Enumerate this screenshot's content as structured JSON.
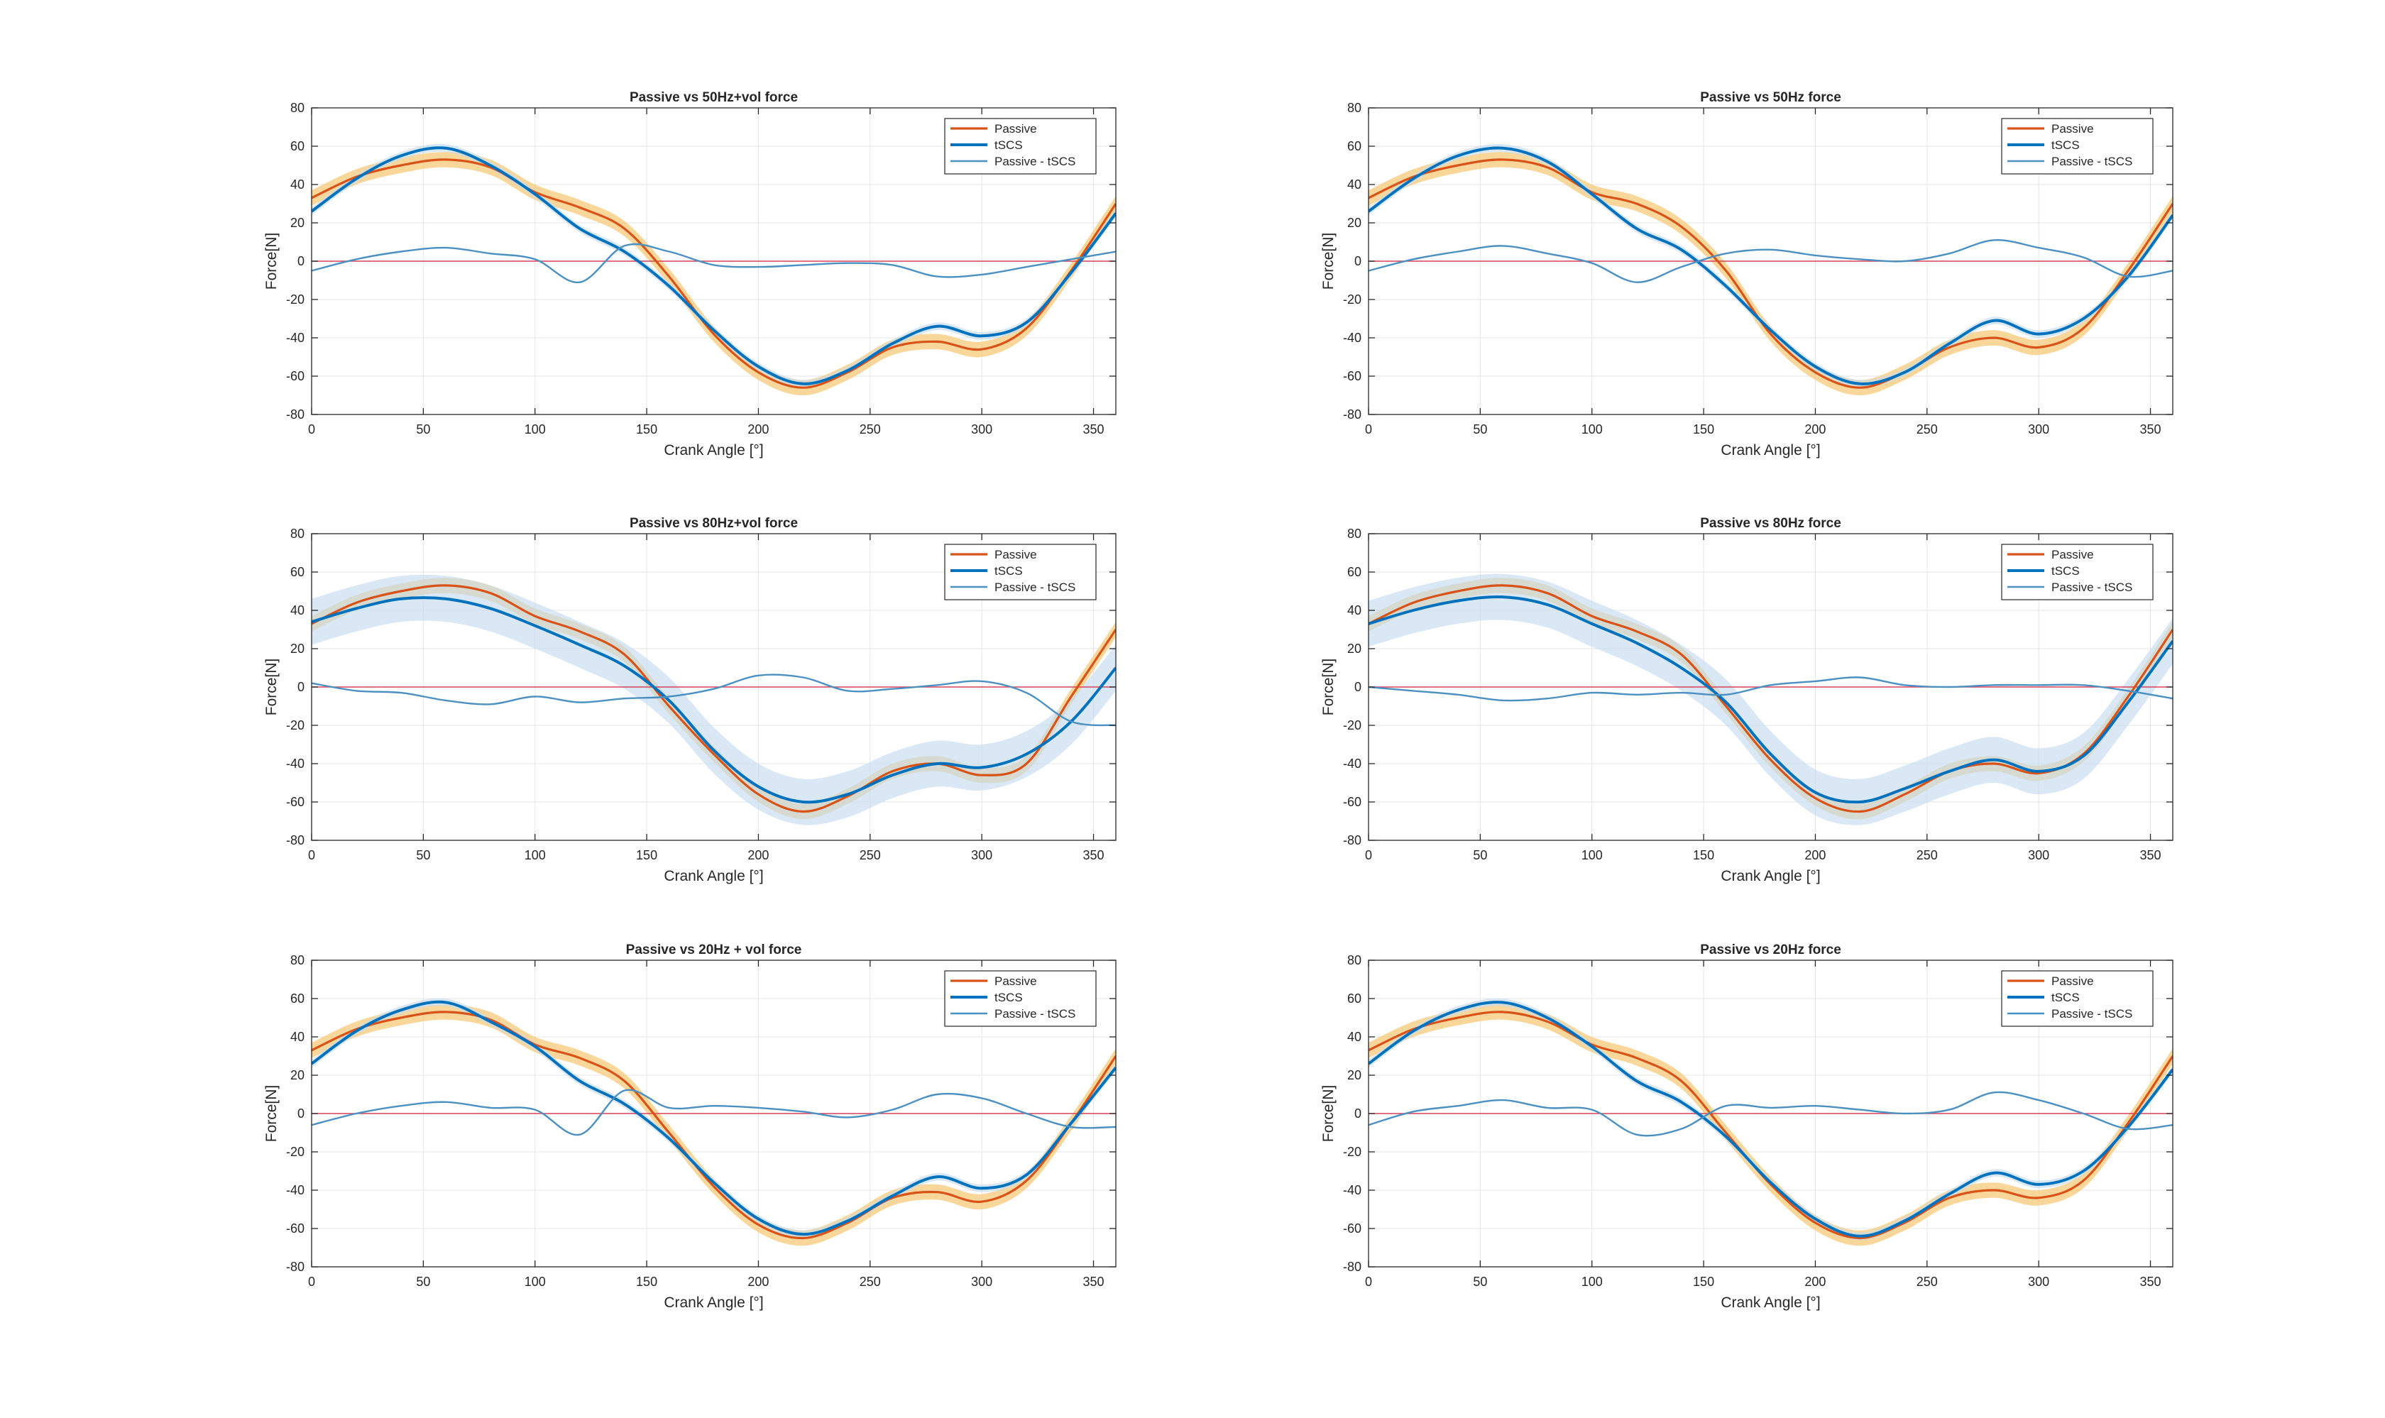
{
  "figure": {
    "background": "#ffffff"
  },
  "colors": {
    "passive": "#D95319",
    "passive_band": "#F7C979",
    "tscs": "#0072BD",
    "tscs_band": "#C5DCEE",
    "diff": "#4A90C2",
    "zero_line": "#D9405A",
    "grid": "#E6E6E6",
    "axes": "#262626"
  },
  "chart_data": [
    {
      "type": "line",
      "title": "Passive vs 50Hz+vol force",
      "xlabel": "Crank Angle [°]",
      "ylabel": "Force[N]",
      "xlim": [
        0,
        360
      ],
      "ylim": [
        -80,
        80
      ],
      "xticks": [
        0,
        50,
        100,
        150,
        200,
        250,
        300,
        350
      ],
      "yticks": [
        -80,
        -60,
        -40,
        -20,
        0,
        20,
        40,
        60,
        80
      ],
      "grid": true,
      "legend_position": "top-right",
      "x": [
        0,
        20,
        40,
        60,
        80,
        100,
        120,
        140,
        160,
        180,
        200,
        220,
        240,
        260,
        280,
        300,
        320,
        340,
        360
      ],
      "series": [
        {
          "name": "Passive",
          "values": [
            33,
            44,
            50,
            53,
            49,
            36,
            28,
            17,
            -8,
            -38,
            -58,
            -66,
            -58,
            -45,
            -42,
            -46,
            -35,
            -5,
            30
          ],
          "band": 4
        },
        {
          "name": "tSCS",
          "values": [
            26,
            43,
            55,
            59,
            50,
            35,
            17,
            5,
            -13,
            -36,
            -55,
            -64,
            -57,
            -43,
            -34,
            -39,
            -32,
            -6,
            25
          ],
          "band": 2
        },
        {
          "name": "Passive - tSCS",
          "values": [
            -5,
            1,
            5,
            7,
            4,
            1,
            -11,
            8,
            5,
            -2,
            -3,
            -2,
            -1,
            -2,
            -8,
            -7,
            -3,
            1,
            5
          ]
        }
      ]
    },
    {
      "type": "line",
      "title": "Passive vs 50Hz force",
      "xlabel": "Crank Angle [°]",
      "ylabel": "Force[N]",
      "xlim": [
        0,
        360
      ],
      "ylim": [
        -80,
        80
      ],
      "xticks": [
        0,
        50,
        100,
        150,
        200,
        250,
        300,
        350
      ],
      "yticks": [
        -80,
        -60,
        -40,
        -20,
        0,
        20,
        40,
        60,
        80
      ],
      "grid": true,
      "legend_position": "top-right",
      "x": [
        0,
        20,
        40,
        60,
        80,
        100,
        120,
        140,
        160,
        180,
        200,
        220,
        240,
        260,
        280,
        300,
        320,
        340,
        360
      ],
      "series": [
        {
          "name": "Passive",
          "values": [
            33,
            44,
            50,
            53,
            49,
            36,
            30,
            18,
            -5,
            -38,
            -58,
            -66,
            -58,
            -45,
            -40,
            -45,
            -35,
            -5,
            30
          ],
          "band": 4
        },
        {
          "name": "tSCS",
          "values": [
            26,
            43,
            55,
            59,
            52,
            35,
            17,
            6,
            -13,
            -36,
            -55,
            -64,
            -58,
            -43,
            -31,
            -38,
            -30,
            -8,
            24
          ],
          "band": 2
        },
        {
          "name": "Passive - tSCS",
          "values": [
            -5,
            1,
            5,
            8,
            4,
            -1,
            -11,
            -3,
            4,
            6,
            3,
            1,
            0,
            4,
            11,
            7,
            2,
            -8,
            -5
          ]
        }
      ]
    },
    {
      "type": "line",
      "title": "Passive vs 80Hz+vol force",
      "xlabel": "Crank Angle [°]",
      "ylabel": "Force[N]",
      "xlim": [
        0,
        360
      ],
      "ylim": [
        -80,
        80
      ],
      "xticks": [
        0,
        50,
        100,
        150,
        200,
        250,
        300,
        350
      ],
      "yticks": [
        -80,
        -60,
        -40,
        -20,
        0,
        20,
        40,
        60,
        80
      ],
      "grid": true,
      "legend_position": "top-right",
      "x": [
        0,
        20,
        40,
        60,
        80,
        100,
        120,
        140,
        160,
        180,
        200,
        220,
        240,
        260,
        280,
        300,
        320,
        340,
        360
      ],
      "series": [
        {
          "name": "Passive",
          "values": [
            33,
            44,
            50,
            53,
            49,
            37,
            29,
            17,
            -10,
            -35,
            -56,
            -65,
            -57,
            -44,
            -40,
            -46,
            -40,
            -5,
            30
          ],
          "band": 4
        },
        {
          "name": "tSCS",
          "values": [
            34,
            41,
            46,
            46,
            41,
            32,
            22,
            11,
            -7,
            -33,
            -52,
            -60,
            -56,
            -46,
            -40,
            -42,
            -35,
            -18,
            10
          ],
          "band": 12
        },
        {
          "name": "Passive - tSCS",
          "values": [
            2,
            -2,
            -3,
            -7,
            -9,
            -5,
            -8,
            -6,
            -5,
            -1,
            6,
            5,
            -2,
            -1,
            1,
            3,
            -3,
            -18,
            -20
          ]
        }
      ]
    },
    {
      "type": "line",
      "title": "Passive vs 80Hz force",
      "xlabel": "Crank Angle [°]",
      "ylabel": "Force[N]",
      "xlim": [
        0,
        360
      ],
      "ylim": [
        -80,
        80
      ],
      "xticks": [
        0,
        50,
        100,
        150,
        200,
        250,
        300,
        350
      ],
      "yticks": [
        -80,
        -60,
        -40,
        -20,
        0,
        20,
        40,
        60,
        80
      ],
      "grid": true,
      "legend_position": "top-right",
      "x": [
        0,
        20,
        40,
        60,
        80,
        100,
        120,
        140,
        160,
        180,
        200,
        220,
        240,
        260,
        280,
        300,
        320,
        340,
        360
      ],
      "series": [
        {
          "name": "Passive",
          "values": [
            33,
            44,
            50,
            53,
            49,
            37,
            29,
            17,
            -10,
            -38,
            -58,
            -65,
            -56,
            -44,
            -40,
            -45,
            -35,
            -5,
            30
          ],
          "band": 4
        },
        {
          "name": "tSCS",
          "values": [
            33,
            40,
            45,
            47,
            43,
            33,
            23,
            10,
            -8,
            -35,
            -55,
            -60,
            -53,
            -44,
            -38,
            -44,
            -36,
            -8,
            24
          ],
          "band": 12
        },
        {
          "name": "Passive - tSCS",
          "values": [
            0,
            -2,
            -4,
            -7,
            -6,
            -3,
            -4,
            -3,
            -4,
            1,
            3,
            5,
            1,
            0,
            1,
            1,
            1,
            -2,
            -6
          ]
        }
      ]
    },
    {
      "type": "line",
      "title": "Passive vs 20Hz + vol force",
      "xlabel": "Crank Angle [°]",
      "ylabel": "Force[N]",
      "xlim": [
        0,
        360
      ],
      "ylim": [
        -80,
        80
      ],
      "xticks": [
        0,
        50,
        100,
        150,
        200,
        250,
        300,
        350
      ],
      "yticks": [
        -80,
        -60,
        -40,
        -20,
        0,
        20,
        40,
        60,
        80
      ],
      "grid": true,
      "legend_position": "top-right",
      "x": [
        0,
        20,
        40,
        60,
        80,
        100,
        120,
        140,
        160,
        180,
        200,
        220,
        240,
        260,
        280,
        300,
        320,
        340,
        360
      ],
      "series": [
        {
          "name": "Passive",
          "values": [
            33,
            44,
            50,
            53,
            49,
            36,
            29,
            17,
            -10,
            -38,
            -58,
            -65,
            -57,
            -44,
            -41,
            -46,
            -35,
            -5,
            30
          ],
          "band": 4
        },
        {
          "name": "tSCS",
          "values": [
            26,
            43,
            54,
            58,
            48,
            35,
            17,
            5,
            -13,
            -36,
            -55,
            -63,
            -56,
            -43,
            -33,
            -39,
            -32,
            -5,
            24
          ],
          "band": 2
        },
        {
          "name": "Passive - tSCS",
          "values": [
            -6,
            0,
            4,
            6,
            3,
            2,
            -11,
            12,
            3,
            4,
            3,
            1,
            -2,
            2,
            10,
            8,
            0,
            -7,
            -7
          ]
        }
      ]
    },
    {
      "type": "line",
      "title": "Passive vs 20Hz force",
      "xlabel": "Crank Angle [°]",
      "ylabel": "Force[N]",
      "xlim": [
        0,
        360
      ],
      "ylim": [
        -80,
        80
      ],
      "xticks": [
        0,
        50,
        100,
        150,
        200,
        250,
        300,
        350
      ],
      "yticks": [
        -80,
        -60,
        -40,
        -20,
        0,
        20,
        40,
        60,
        80
      ],
      "grid": true,
      "legend_position": "top-right",
      "x": [
        0,
        20,
        40,
        60,
        80,
        100,
        120,
        140,
        160,
        180,
        200,
        220,
        240,
        260,
        280,
        300,
        320,
        340,
        360
      ],
      "series": [
        {
          "name": "Passive",
          "values": [
            33,
            44,
            50,
            53,
            48,
            36,
            29,
            17,
            -10,
            -37,
            -57,
            -65,
            -57,
            -44,
            -40,
            -44,
            -35,
            -5,
            30
          ],
          "band": 4
        },
        {
          "name": "tSCS",
          "values": [
            26,
            43,
            54,
            58,
            50,
            35,
            17,
            6,
            -12,
            -36,
            -55,
            -64,
            -56,
            -42,
            -31,
            -37,
            -30,
            -7,
            23
          ],
          "band": 2
        },
        {
          "name": "Passive - tSCS",
          "values": [
            -6,
            1,
            4,
            7,
            3,
            2,
            -11,
            -8,
            4,
            3,
            4,
            2,
            0,
            2,
            11,
            7,
            0,
            -8,
            -6
          ]
        }
      ]
    }
  ]
}
